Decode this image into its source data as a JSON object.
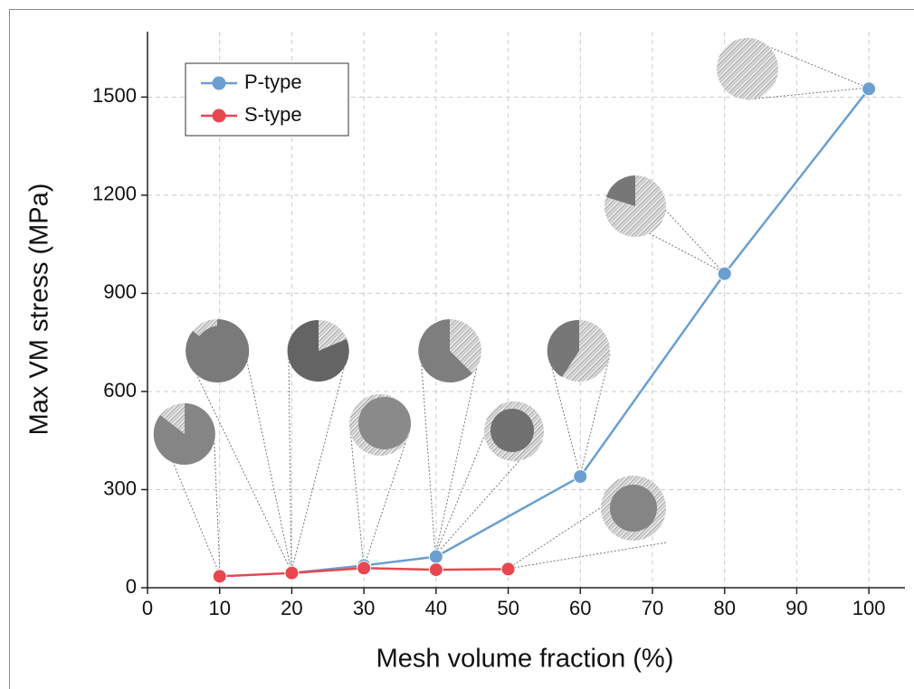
{
  "chart_data": {
    "type": "line",
    "x_label": "Mesh volume fraction (%)",
    "y_label": "Max VM stress (MPa)",
    "series": [
      {
        "name": "P-type",
        "color": "#6a9fd0",
        "x": [
          20,
          30,
          40,
          60,
          80,
          100
        ],
        "values": [
          45,
          68,
          95,
          340,
          960,
          1525
        ]
      },
      {
        "name": "S-type",
        "color": "#e8474f",
        "x": [
          10,
          20,
          30,
          40,
          50
        ],
        "values": [
          35,
          45,
          60,
          55,
          57
        ]
      }
    ],
    "xlim": [
      0,
      105
    ],
    "xticks": [
      0,
      10,
      20,
      30,
      40,
      50,
      60,
      70,
      80,
      90,
      100
    ],
    "ylim": [
      0,
      1700
    ],
    "yticks": [
      0,
      300,
      600,
      900,
      1200,
      1500
    ],
    "grid": true,
    "legend": "upper-left"
  }
}
